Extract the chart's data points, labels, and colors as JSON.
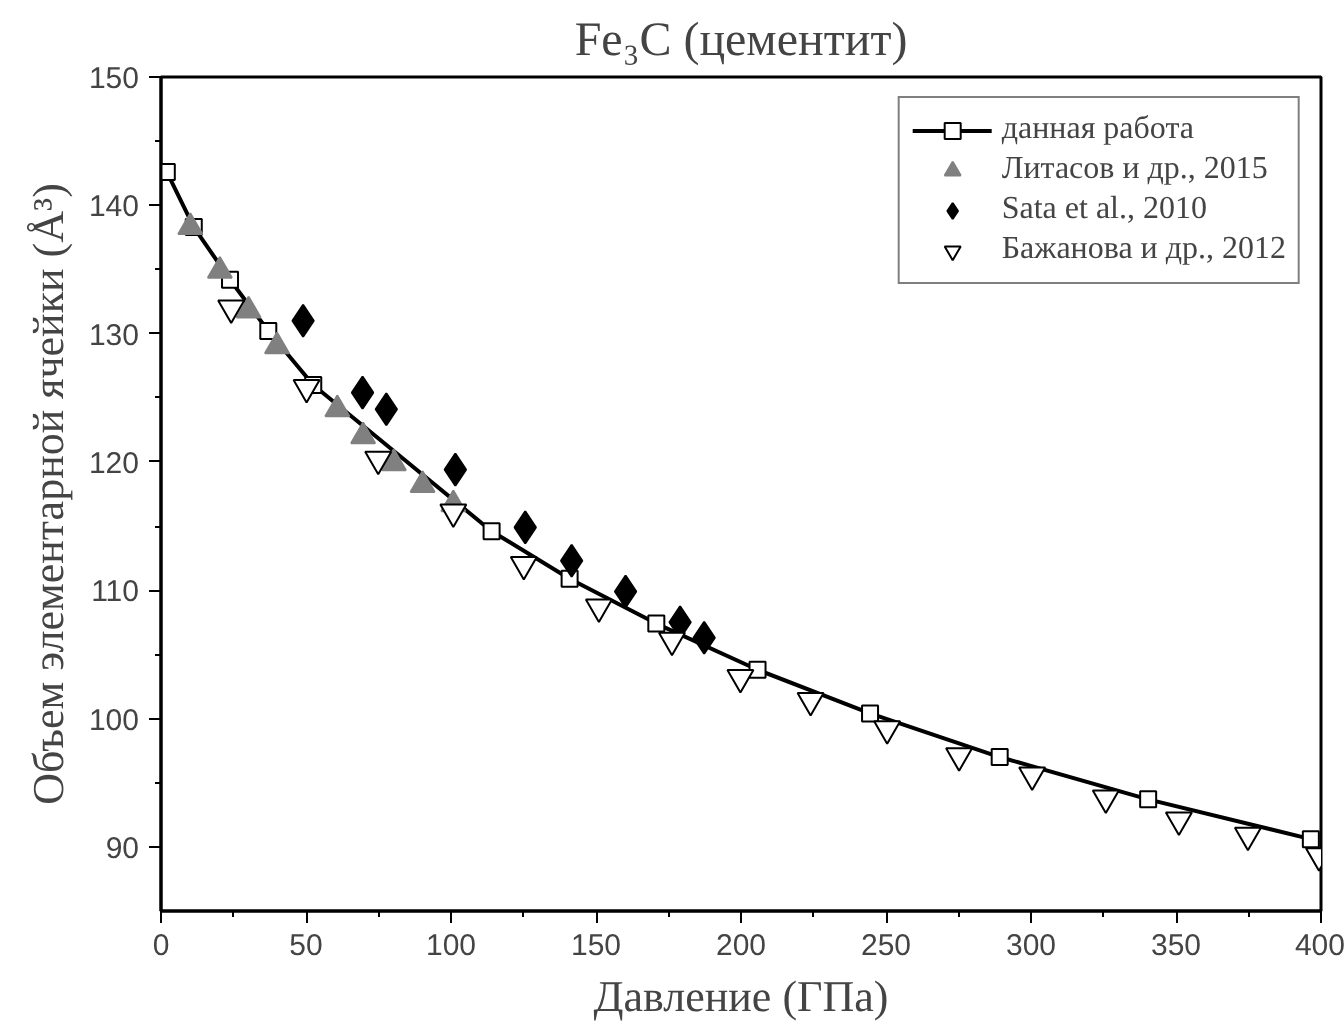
{
  "chart_data": {
    "type": "scatter",
    "title": "Fe₃C (цементит)",
    "xlabel": "Давление (ГПа)",
    "ylabel": "Объем элементарной ячейки (Å³)",
    "xlim": [
      0,
      400
    ],
    "xticks": [
      0,
      50,
      100,
      150,
      200,
      250,
      300,
      350,
      400
    ],
    "ylim": [
      85,
      150
    ],
    "yticks": [
      90,
      100,
      110,
      120,
      130,
      140,
      150
    ],
    "grid": false,
    "legend": "top right",
    "series": [
      {
        "type": "line",
        "name": "данная работа",
        "color": "#000000",
        "marker": "square",
        "x": [
          2,
          11.3,
          23.8,
          37,
          52.5,
          114,
          140.9,
          170.8,
          205.7,
          244.5,
          289.2,
          340.4,
          396.5
        ],
        "values": [
          142.6,
          138.3,
          134.2,
          130.2,
          126.0,
          114.6,
          110.9,
          107.4,
          103.8,
          100.4,
          97.0,
          93.7,
          90.6
        ]
      },
      {
        "name": "Литасов и др., 2015",
        "color": "#808080",
        "marker": "triangle",
        "x": [
          10.1,
          20.3,
          30.2,
          40,
          60.8,
          69.7,
          80.3,
          90.2,
          100.8
        ],
        "values": [
          138.3,
          134.9,
          131.8,
          129.0,
          124.1,
          122.0,
          119.9,
          118.2,
          116.7
        ]
      },
      {
        "name": "Sata et al., 2010",
        "color": "#000000",
        "marker": "diamond",
        "x": [
          49,
          69.5,
          77.7,
          101.5,
          125.6,
          141.6,
          160.2,
          179,
          187.3
        ],
        "values": [
          131.0,
          125.4,
          124.1,
          119.4,
          114.9,
          112.3,
          109.9,
          107.5,
          106.3
        ]
      },
      {
        "name": "Бажанова и др., 2012",
        "color": "#000000",
        "marker": "triangle",
        "x": [
          24.2,
          50.2,
          74.9,
          100.8,
          125.1,
          151,
          176.2,
          199.8,
          224,
          250.4,
          275.2,
          300.4,
          325.8,
          351,
          374.8,
          399.3
        ],
        "values": [
          132.0,
          125.8,
          120.2,
          116.1,
          112.0,
          108.7,
          106.1,
          103.2,
          101.4,
          99.2,
          97.1,
          95.6,
          93.8,
          92.1,
          90.9,
          89.3
        ]
      }
    ]
  }
}
